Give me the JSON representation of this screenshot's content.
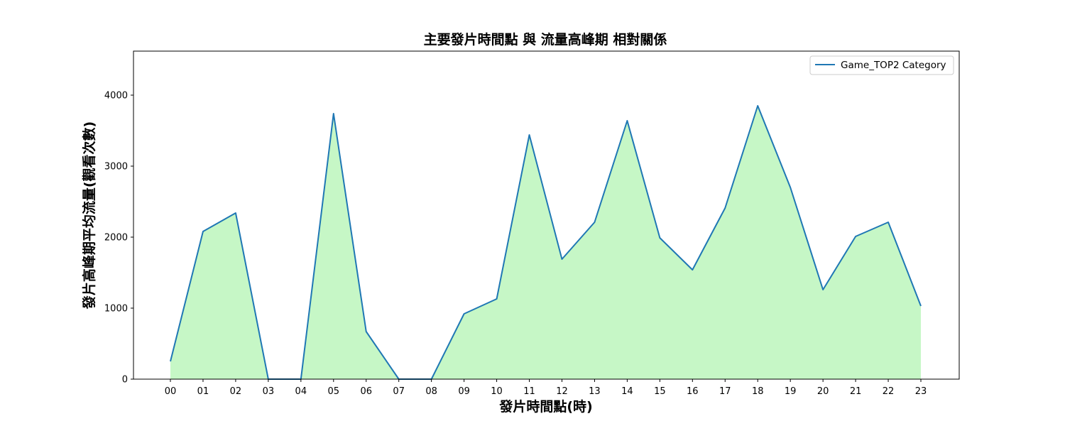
{
  "chart_data": {
    "type": "area",
    "title": "主要發片時間點 與 流量高峰期 相對關係",
    "xlabel": "發片時間點(時)",
    "ylabel": "發片高峰期平均流量(觀看次數)",
    "categories": [
      "00",
      "01",
      "02",
      "03",
      "04",
      "05",
      "06",
      "07",
      "08",
      "09",
      "10",
      "11",
      "12",
      "13",
      "14",
      "15",
      "16",
      "17",
      "18",
      "19",
      "20",
      "21",
      "22",
      "23"
    ],
    "series": [
      {
        "name": "Game_TOP2 Category",
        "values": [
          250,
          2080,
          2340,
          0,
          0,
          3740,
          670,
          0,
          0,
          920,
          1130,
          3440,
          1690,
          2210,
          3640,
          1990,
          1540,
          2410,
          3850,
          2700,
          1260,
          2010,
          2210,
          1030
        ],
        "line_color": "#1f77b4",
        "fill_color": "#c6f7c6"
      }
    ],
    "ylim": [
      0,
      4620
    ],
    "y_ticks": [
      0,
      1000,
      2000,
      3000,
      4000
    ],
    "grid": false,
    "legend_position": "upper right"
  }
}
